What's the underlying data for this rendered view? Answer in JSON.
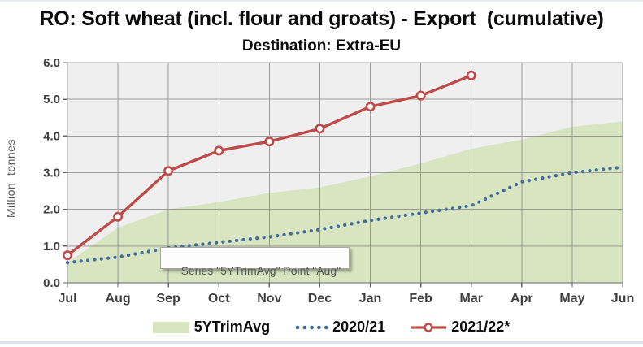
{
  "header": {
    "title": "RO: Soft wheat (incl. flour and groats) - Export  (cumulative)",
    "subtitle": "Destination: Extra-EU"
  },
  "tooltip": {
    "text": "Series \"5YTrimAvg\" Point \"Aug\""
  },
  "colors": {
    "plot_bg": "#efefef",
    "gridline": "#8e8e8e",
    "axis_line": "#666666",
    "axis_text": "#3f3f3f",
    "area_fill": "#d9e4c0",
    "dotted_line": "#3e6d9e",
    "red_line": "#bf4a47",
    "marker_fill": "#ffffff"
  },
  "chart_data": {
    "type": "area",
    "subtype": "combo: shaded area + dotted line + line with circle markers, cumulative by month",
    "title": "RO: Soft wheat (incl. flour and groats) - Export  (cumulative)",
    "subtitle": "Destination: Extra-EU",
    "xlabel": "",
    "ylabel": "Million  tonnes",
    "ylim": [
      0,
      6
    ],
    "ytick_labels": [
      "0.0",
      "1.0",
      "2.0",
      "3.0",
      "4.0",
      "5.0",
      "6.0"
    ],
    "grid": true,
    "legend_position": "bottom",
    "categories": [
      "Jul",
      "Aug",
      "Sep",
      "Oct",
      "Nov",
      "Dec",
      "Jan",
      "Feb",
      "Mar",
      "Apr",
      "May",
      "Jun"
    ],
    "series": [
      {
        "name": "5YTrimAvg",
        "type": "area",
        "color": "#d9e4c0",
        "values": [
          0.55,
          1.5,
          2.0,
          2.2,
          2.45,
          2.6,
          2.9,
          3.25,
          3.65,
          3.9,
          4.25,
          4.4
        ]
      },
      {
        "name": "2020/21",
        "type": "dotted-line",
        "color": "#3e6d9e",
        "values": [
          0.55,
          0.7,
          0.95,
          1.1,
          1.25,
          1.45,
          1.7,
          1.9,
          2.1,
          2.75,
          3.0,
          3.15
        ]
      },
      {
        "name": "2021/22*",
        "type": "line-markers",
        "color": "#bf4a47",
        "values": [
          0.75,
          1.8,
          3.05,
          3.6,
          3.85,
          4.2,
          4.8,
          5.1,
          5.65,
          null,
          null,
          null
        ]
      }
    ]
  }
}
